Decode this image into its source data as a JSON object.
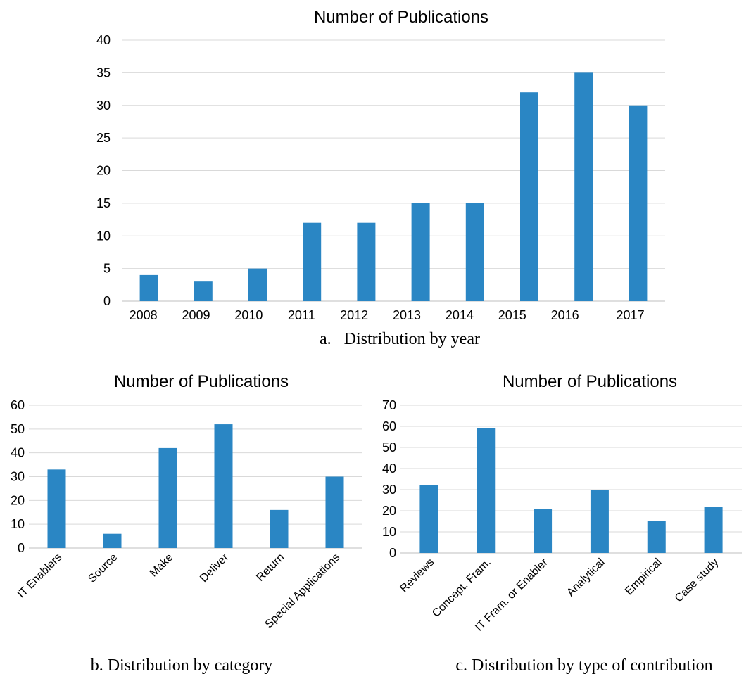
{
  "chart_data": [
    {
      "type": "bar",
      "title": "Number of Publications",
      "caption": "a.   Distribution by year",
      "ylim": [
        0,
        40
      ],
      "yticks": [
        "0",
        "5",
        "10",
        "15",
        "20",
        "25",
        "30",
        "35",
        "40"
      ],
      "xticks": [
        "2008",
        "2009",
        "2010",
        "2011",
        "2012",
        "2013",
        "2014",
        "2015",
        "2016",
        "2017"
      ],
      "values": [
        4,
        3,
        5,
        12,
        12,
        15,
        15,
        32,
        35,
        30
      ],
      "grid": true,
      "bar_color": "#2a86c4"
    },
    {
      "type": "bar",
      "title": "Number of Publications",
      "caption": "b. Distribution by category",
      "ylim": [
        0,
        60
      ],
      "yticks": [
        "0",
        "10",
        "20",
        "30",
        "40",
        "50",
        "60"
      ],
      "categories": [
        "IT Enablers",
        "Source",
        "Make",
        "Deliver",
        "Return",
        "Special Applications"
      ],
      "values": [
        33,
        6,
        42,
        52,
        16,
        30
      ],
      "grid": true,
      "bar_color": "#2a86c4"
    },
    {
      "type": "bar",
      "title": "Number of Publications",
      "caption": "c. Distribution by type of contribution",
      "ylim": [
        0,
        70
      ],
      "yticks": [
        "0",
        "10",
        "20",
        "30",
        "40",
        "50",
        "60",
        "70"
      ],
      "categories": [
        "Reviews",
        "Concept. Fram.",
        "IT Fram. or Enabler",
        "Analytical",
        "Empirical",
        "Case study"
      ],
      "values": [
        32,
        59,
        21,
        30,
        15,
        22
      ],
      "grid": true,
      "bar_color": "#2a86c4"
    }
  ]
}
